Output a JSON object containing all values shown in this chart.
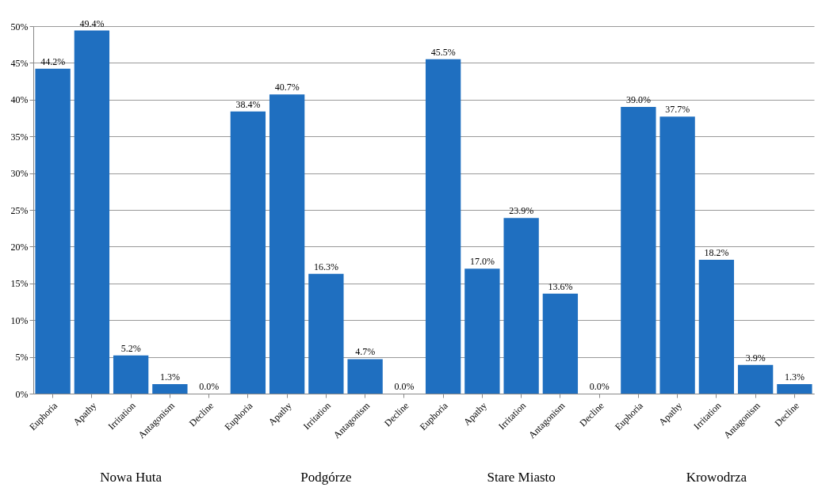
{
  "chart_data": {
    "type": "bar",
    "categories": [
      "Euphoria",
      "Apathy",
      "Irritation",
      "Antagonism",
      "Decline",
      "Euphoria",
      "Apathy",
      "Irritation",
      "Antagonism",
      "Decline",
      "Euphoria",
      "Apathy",
      "Irritation",
      "Antagonism",
      "Decline",
      "Euphoria",
      "Apathy",
      "Irritation",
      "Antagonism",
      "Decline"
    ],
    "values": [
      44.2,
      49.4,
      5.2,
      1.3,
      0.0,
      38.4,
      40.7,
      16.3,
      4.7,
      0.0,
      45.5,
      17.0,
      23.9,
      13.6,
      0.0,
      39.0,
      37.7,
      18.2,
      3.9,
      1.3
    ],
    "value_labels": [
      "44.2%",
      "49.4%",
      "5.2%",
      "1.3%",
      "0.0%",
      "38.4%",
      "40.7%",
      "16.3%",
      "4.7%",
      "0.0%",
      "45.5%",
      "17.0%",
      "23.9%",
      "13.6%",
      "0.0%",
      "39.0%",
      "37.7%",
      "18.2%",
      "3.9%",
      "1.3%"
    ],
    "color": "#1f6fc0",
    "ylim": [
      0,
      50
    ],
    "yticks": [
      {
        "value": 0,
        "label": "0%"
      },
      {
        "value": 5,
        "label": "5%"
      },
      {
        "value": 10,
        "label": "10%"
      },
      {
        "value": 15,
        "label": "15%"
      },
      {
        "value": 20,
        "label": "20%"
      },
      {
        "value": 25,
        "label": "25%"
      },
      {
        "value": 30,
        "label": "30%"
      },
      {
        "value": 35,
        "label": "35%"
      },
      {
        "value": 40,
        "label": "40%"
      },
      {
        "value": 45,
        "label": "45%"
      },
      {
        "value": 50,
        "label": "50%"
      }
    ],
    "grid": "y",
    "annotations": [
      "Nowa Huta",
      "Podgórze",
      "Stare Miasto",
      "Krowodrza"
    ]
  }
}
